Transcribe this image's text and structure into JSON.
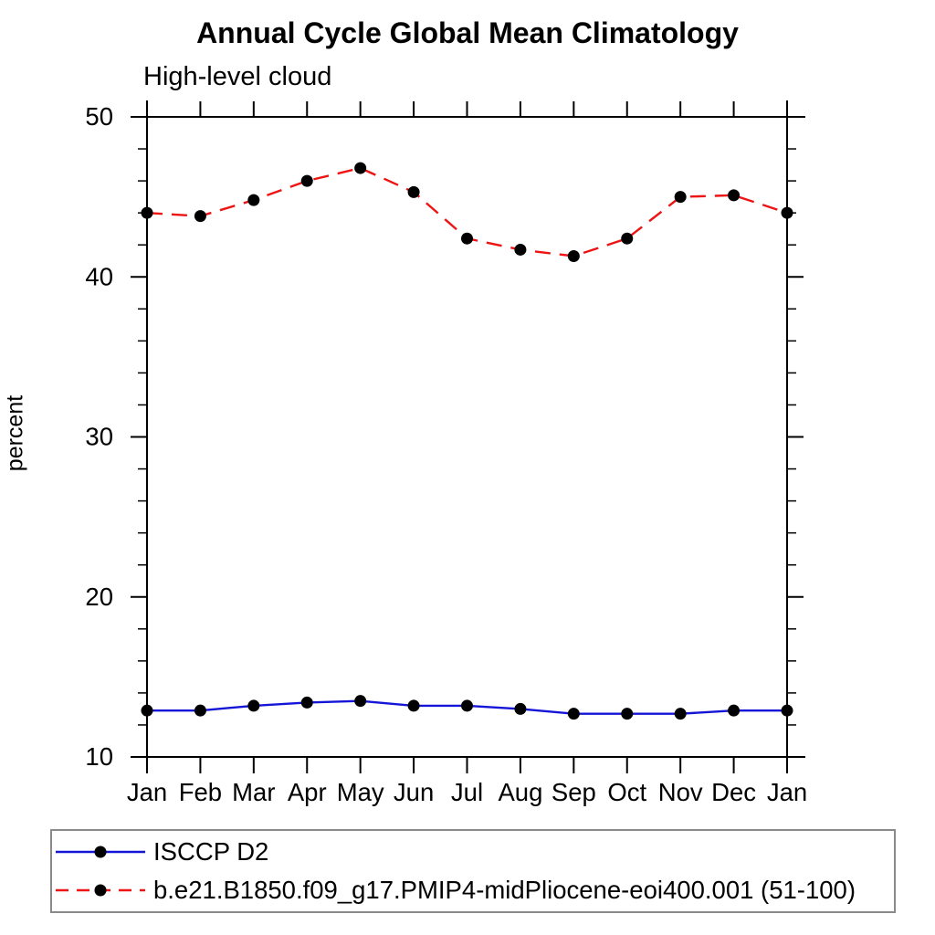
{
  "header": {
    "title": "Annual Cycle Global Mean Climatology",
    "subtitle": "High-level cloud"
  },
  "chart_data": {
    "type": "line",
    "title": "Annual Cycle Global Mean Climatology",
    "subtitle": "High-level cloud",
    "xlabel": "",
    "ylabel": "percent",
    "x_categories": [
      "Jan",
      "Feb",
      "Mar",
      "Apr",
      "May",
      "Jun",
      "Jul",
      "Aug",
      "Sep",
      "Oct",
      "Nov",
      "Dec",
      "Jan"
    ],
    "ylim": [
      10,
      50
    ],
    "y_major_ticks": [
      10,
      20,
      30,
      40,
      50
    ],
    "y_minor_step": 2,
    "grid": false,
    "legend_position": "bottom-left-box",
    "axis_color": "#000000",
    "marker": "filled-circle",
    "marker_color": "#000000",
    "series": [
      {
        "name": "ISCCP D2",
        "line_style": "solid",
        "color": "#1515d8",
        "values": [
          12.9,
          12.9,
          13.2,
          13.4,
          13.5,
          13.2,
          13.2,
          13.0,
          12.7,
          12.7,
          12.7,
          12.9,
          12.9
        ]
      },
      {
        "name": "b.e21.B1850.f09_g17.PMIP4-midPliocene-eoi400.001 (51-100)",
        "line_style": "dashed",
        "color": "#ee1414",
        "values": [
          44.0,
          43.8,
          44.8,
          46.0,
          46.8,
          45.3,
          42.4,
          41.7,
          41.3,
          42.4,
          45.0,
          45.1,
          44.0
        ]
      }
    ]
  }
}
